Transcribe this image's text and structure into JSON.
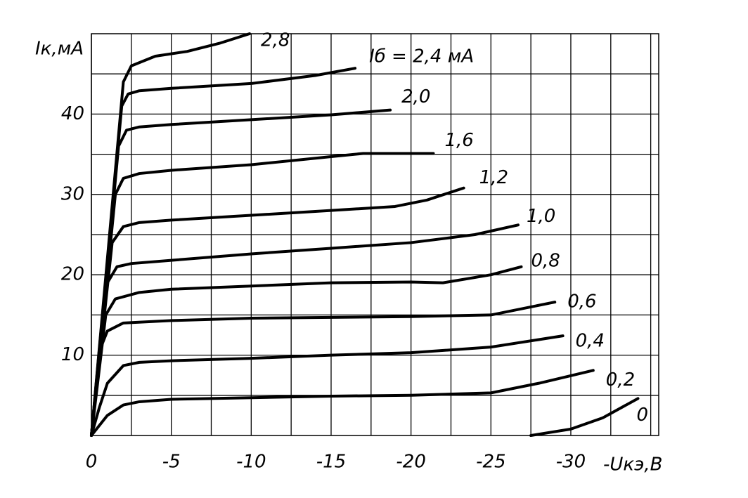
{
  "chart_data": {
    "type": "line",
    "x_label": "-Uкэ,В",
    "y_label": "Iк,мА",
    "xlim": [
      0,
      -35.5
    ],
    "ylim": [
      0,
      50
    ],
    "xticks": [
      0,
      -5,
      -10,
      -15,
      -20,
      -25,
      -30
    ],
    "yticks": [
      10,
      20,
      30,
      40
    ],
    "xminorticks": [
      -2.5,
      -7.5,
      -12.5,
      -17.5,
      -22.5,
      -27.5,
      -32.5,
      -35
    ],
    "yminorticks": [
      5,
      15,
      25,
      35,
      45
    ],
    "grid": true,
    "color": "#000000",
    "series": [
      {
        "name": "0",
        "x": [
          -27.5,
          -30,
          -32,
          -34.2
        ],
        "values": [
          0,
          0.8,
          2.2,
          4.6
        ]
      },
      {
        "name": "0,2",
        "x": [
          0,
          -1,
          -2,
          -3,
          -5,
          -10,
          -15,
          -20,
          -25,
          -28,
          -31.4
        ],
        "values": [
          0,
          2.5,
          3.8,
          4.2,
          4.5,
          4.7,
          4.9,
          5,
          5.3,
          6.5,
          8.1
        ]
      },
      {
        "name": "0,4",
        "x": [
          0,
          -0.5,
          -1,
          -2,
          -3,
          -5,
          -10,
          -15,
          -20,
          -25,
          -29.5
        ],
        "values": [
          0,
          3.5,
          6.5,
          8.7,
          9.1,
          9.3,
          9.6,
          10,
          10.3,
          11,
          12.4
        ]
      },
      {
        "name": "0,6",
        "x": [
          0,
          -0.6,
          -1,
          -2,
          -5,
          -10,
          -20,
          -25,
          -29
        ],
        "values": [
          0,
          11,
          13,
          14,
          14.3,
          14.6,
          14.8,
          15,
          16.6
        ]
      },
      {
        "name": "0,8",
        "x": [
          0,
          -0.9,
          -1.5,
          -3,
          -5,
          -10,
          -15,
          -20,
          -22,
          -25,
          -26.9
        ],
        "values": [
          0,
          15,
          17,
          17.8,
          18.2,
          18.6,
          19,
          19.1,
          19,
          20,
          21
        ]
      },
      {
        "name": "1,0",
        "x": [
          0,
          -1,
          -1.6,
          -2.5,
          -5,
          -10,
          -15,
          -20,
          -24,
          -26.7
        ],
        "values": [
          0,
          19,
          21,
          21.4,
          21.8,
          22.6,
          23.3,
          24,
          25,
          26.2
        ]
      },
      {
        "name": "1,2",
        "x": [
          0,
          -1.3,
          -2,
          -3,
          -5,
          -10,
          -15,
          -19,
          -21,
          -23.3
        ],
        "values": [
          0,
          24,
          26,
          26.5,
          26.8,
          27.4,
          28,
          28.5,
          29.3,
          30.8
        ]
      },
      {
        "name": "1,6",
        "x": [
          0,
          -1.5,
          -2,
          -3,
          -5,
          -10,
          -15,
          -17,
          -21.4
        ],
        "values": [
          0,
          30,
          32,
          32.6,
          33,
          33.7,
          34.7,
          35.1,
          35.1
        ]
      },
      {
        "name": "2,0",
        "x": [
          0,
          -1.7,
          -2.2,
          -3,
          -5,
          -10,
          -15,
          -18.7
        ],
        "values": [
          0,
          36,
          38,
          38.4,
          38.7,
          39.3,
          39.9,
          40.5
        ]
      },
      {
        "name": "Iб = 2,4 мА",
        "x": [
          0,
          -1.9,
          -2.3,
          -3,
          -5,
          -10,
          -14,
          -16.5
        ],
        "values": [
          0,
          41,
          42.5,
          42.9,
          43.2,
          43.8,
          44.8,
          45.7
        ]
      },
      {
        "name": "2,8",
        "x": [
          0,
          -2,
          -2.5,
          -4,
          -6,
          -8,
          -9.9
        ],
        "values": [
          0,
          44,
          46,
          47.2,
          47.8,
          48.8,
          50
        ]
      }
    ]
  }
}
